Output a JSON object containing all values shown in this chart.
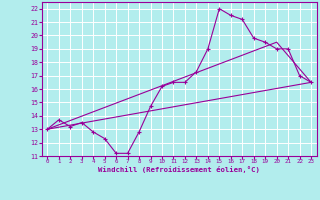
{
  "title": "",
  "xlabel": "Windchill (Refroidissement éolien,°C)",
  "background_color": "#b2eded",
  "line_color": "#990099",
  "grid_color": "#ffffff",
  "xlim": [
    -0.5,
    23.5
  ],
  "ylim": [
    11,
    22.5
  ],
  "xticks": [
    0,
    1,
    2,
    3,
    4,
    5,
    6,
    7,
    8,
    9,
    10,
    11,
    12,
    13,
    14,
    15,
    16,
    17,
    18,
    19,
    20,
    21,
    22,
    23
  ],
  "yticks": [
    11,
    12,
    13,
    14,
    15,
    16,
    17,
    18,
    19,
    20,
    21,
    22
  ],
  "line1_x": [
    0,
    1,
    2,
    3,
    4,
    5,
    6,
    7,
    8,
    9,
    10,
    11,
    12,
    13,
    14,
    15,
    16,
    17,
    18,
    19,
    20,
    21,
    22,
    23
  ],
  "line1_y": [
    13.0,
    13.7,
    13.2,
    13.5,
    12.8,
    12.3,
    11.2,
    11.2,
    12.8,
    14.7,
    16.2,
    16.5,
    16.5,
    17.3,
    19.0,
    22.0,
    21.5,
    21.2,
    19.8,
    19.5,
    19.0,
    19.0,
    17.0,
    16.5
  ],
  "line2_x": [
    0,
    23
  ],
  "line2_y": [
    13.0,
    16.5
  ],
  "line3_x": [
    0,
    20,
    23
  ],
  "line3_y": [
    13.0,
    19.5,
    16.5
  ]
}
